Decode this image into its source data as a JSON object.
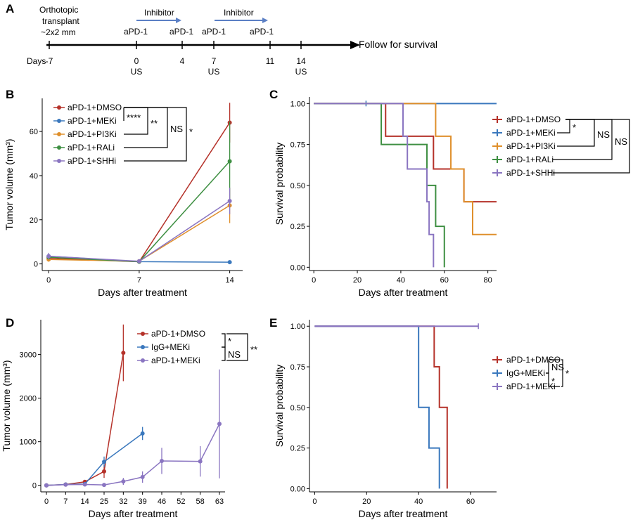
{
  "timeline": {
    "panel": "A",
    "transplant_label": [
      "Orthotopic",
      "transplant",
      "~2x2 mm"
    ],
    "days_label": "Days",
    "days": [
      "-7",
      "0",
      "4",
      "7",
      "11",
      "14"
    ],
    "us_label": "US",
    "inhibitor_label": "Inhibitor",
    "apd1_label": "aPD-1",
    "follow_label": "Follow for survival"
  },
  "colors": {
    "dmso": "#b5322a",
    "meki": "#3a78bd",
    "pi3ki": "#df8f2b",
    "rali": "#3e8f42",
    "shhi": "#8a75c1"
  },
  "chart_data": [
    {
      "panel": "B",
      "type": "line",
      "xlabel": "Days after treatment",
      "ylabel": "Tumor volume (mm³)",
      "xticks": [
        0,
        7,
        14
      ],
      "yticks": [
        0,
        20,
        40,
        60
      ],
      "xlim": [
        -0.5,
        15
      ],
      "ylim": [
        -3,
        75
      ],
      "series": [
        {
          "name": "aPD-1+DMSO",
          "color": "#b5322a",
          "x": [
            0,
            7,
            14
          ],
          "y": [
            2.5,
            1.0,
            64
          ],
          "err": [
            1,
            0.5,
            9
          ]
        },
        {
          "name": "aPD-1+MEKi",
          "color": "#3a78bd",
          "x": [
            0,
            7,
            14
          ],
          "y": [
            3.5,
            1.0,
            0.8
          ],
          "err": [
            1,
            0.3,
            0.3
          ]
        },
        {
          "name": "aPD-1+PI3Ki",
          "color": "#df8f2b",
          "x": [
            0,
            7,
            14
          ],
          "y": [
            2.0,
            1.2,
            26.5
          ],
          "err": [
            1,
            0.5,
            8
          ]
        },
        {
          "name": "aPD-1+RALi",
          "color": "#3e8f42",
          "x": [
            0,
            7,
            14
          ],
          "y": [
            3.0,
            1.0,
            46.5
          ],
          "err": [
            1,
            0.5,
            18
          ]
        },
        {
          "name": "aPD-1+SHHi",
          "color": "#8a75c1",
          "x": [
            0,
            7,
            14
          ],
          "y": [
            3.5,
            1.2,
            28.5
          ],
          "err": [
            1.5,
            0.5,
            6
          ]
        }
      ],
      "significance": [
        "****",
        "**",
        "NS",
        "*"
      ]
    },
    {
      "panel": "C",
      "type": "line",
      "xlabel": "Days after treatment",
      "ylabel": "Survival probability",
      "xticks": [
        0,
        20,
        40,
        60,
        80
      ],
      "yticks": [
        "0.00",
        "0.25",
        "0.50",
        "0.75",
        "1.00"
      ],
      "xlim": [
        -2,
        84
      ],
      "ylim": [
        -0.02,
        1.04
      ],
      "series": [
        {
          "name": "aPD-1+DMSO",
          "color": "#b5322a",
          "x": [
            0,
            33,
            55,
            69,
            84
          ],
          "y": [
            1.0,
            0.8,
            0.6,
            0.4,
            0.4
          ]
        },
        {
          "name": "aPD-1+MEKi",
          "color": "#3a78bd",
          "x": [
            0,
            84
          ],
          "y": [
            1.0,
            1.0
          ],
          "censor": [
            24
          ]
        },
        {
          "name": "aPD-1+PI3Ki",
          "color": "#df8f2b",
          "x": [
            0,
            56,
            63,
            69,
            73,
            84
          ],
          "y": [
            1.0,
            0.8,
            0.6,
            0.4,
            0.2,
            0.2
          ]
        },
        {
          "name": "aPD-1+RALi",
          "color": "#3e8f42",
          "x": [
            0,
            31,
            52,
            56,
            60
          ],
          "y": [
            1.0,
            0.75,
            0.5,
            0.25,
            0.0
          ]
        },
        {
          "name": "aPD-1+SHHi",
          "color": "#8a75c1",
          "x": [
            0,
            41,
            43,
            52,
            53,
            55
          ],
          "y": [
            1.0,
            0.8,
            0.6,
            0.4,
            0.2,
            0.0
          ]
        }
      ],
      "significance": [
        "*",
        "NS",
        "NS",
        "NS"
      ]
    },
    {
      "panel": "D",
      "type": "line",
      "xlabel": "Days after treatment",
      "ylabel": "Tumor volume (mm³)",
      "xcategories": [
        "0",
        "7",
        "14",
        "25",
        "32",
        "39",
        "46",
        "52",
        "58",
        "63"
      ],
      "yticks": [
        0,
        1000,
        2000,
        3000
      ],
      "ylim": [
        -150,
        3800
      ],
      "series": [
        {
          "name": "aPD-1+DMSO",
          "color": "#b5322a",
          "x": [
            "0",
            "7",
            "14",
            "25",
            "32"
          ],
          "y": [
            0,
            20,
            80,
            320,
            3040
          ],
          "err": [
            10,
            10,
            20,
            150,
            650
          ]
        },
        {
          "name": "IgG+MEKi",
          "color": "#3a78bd",
          "x": [
            "0",
            "7",
            "14",
            "25",
            "39"
          ],
          "y": [
            0,
            20,
            30,
            540,
            1190
          ],
          "err": [
            10,
            10,
            20,
            120,
            150
          ]
        },
        {
          "name": "aPD-1+MEKi",
          "color": "#8a75c1",
          "x": [
            "0",
            "7",
            "14",
            "25",
            "32",
            "39",
            "46",
            "58",
            "63"
          ],
          "y": [
            0,
            15,
            20,
            10,
            90,
            190,
            560,
            550,
            1410
          ],
          "err": [
            10,
            10,
            10,
            10,
            80,
            130,
            300,
            350,
            1250
          ]
        }
      ],
      "significance": [
        "*",
        "NS",
        "**"
      ]
    },
    {
      "panel": "E",
      "type": "line",
      "xlabel": "Days after treatment",
      "ylabel": "Survival probability",
      "xticks": [
        0,
        20,
        40,
        60
      ],
      "yticks": [
        "0.00",
        "0.25",
        "0.50",
        "0.75",
        "1.00"
      ],
      "xlim": [
        -2,
        70
      ],
      "ylim": [
        -0.02,
        1.04
      ],
      "series": [
        {
          "name": "aPD-1+DMSO",
          "color": "#b5322a",
          "x": [
            0,
            46,
            48,
            49,
            51
          ],
          "y": [
            1.0,
            0.75,
            0.5,
            0.5,
            0.0
          ]
        },
        {
          "name": "IgG+MEKi",
          "color": "#3a78bd",
          "x": [
            0,
            40,
            44,
            48
          ],
          "y": [
            1.0,
            0.5,
            0.25,
            0.0
          ]
        },
        {
          "name": "aPD-1+MEKi",
          "color": "#8a75c1",
          "x": [
            0,
            63
          ],
          "y": [
            1.0,
            1.0
          ],
          "censor": [
            63
          ]
        }
      ],
      "significance": [
        "NS",
        "*",
        "*"
      ]
    }
  ]
}
